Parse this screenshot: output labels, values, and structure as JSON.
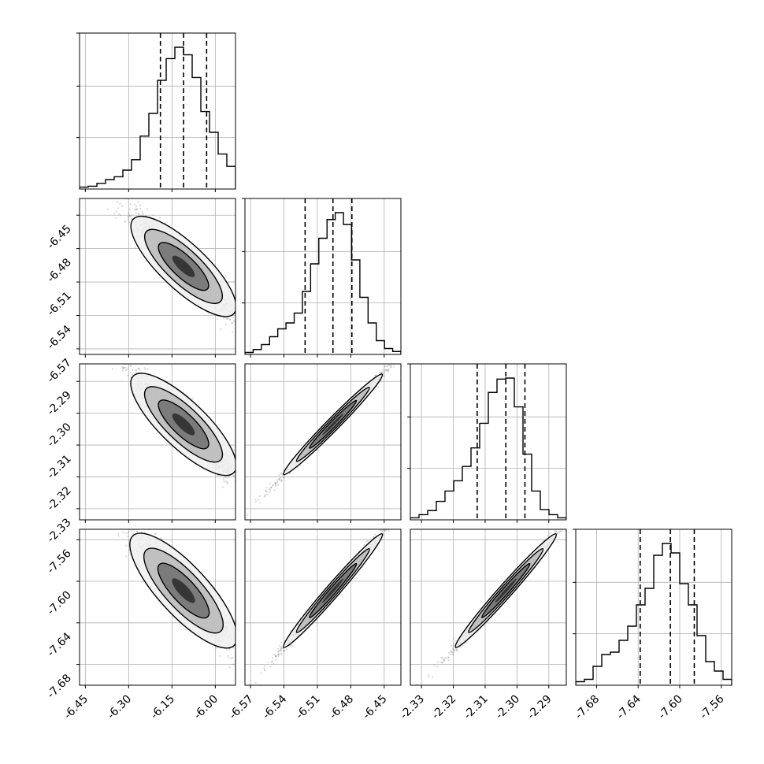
{
  "chart_data": {
    "type": "corner",
    "n_params": 4,
    "parameters": [
      {
        "name": "",
        "range": [
          -6.47,
          -5.93
        ],
        "ticks": [
          "-6.45",
          "-6.30",
          "-6.15",
          "-6.00"
        ],
        "tick_values": [
          -6.45,
          -6.3,
          -6.15,
          -6.0
        ],
        "quantiles": [
          -6.19,
          -6.11,
          -6.03
        ]
      },
      {
        "name": "",
        "range": [
          -6.575,
          -6.435
        ],
        "ticks": [
          "-6.57",
          "-6.54",
          "-6.51",
          "-6.48",
          "-6.45"
        ],
        "tick_values": [
          -6.57,
          -6.54,
          -6.51,
          -6.48,
          -6.45
        ],
        "quantiles": [
          -6.521,
          -6.496,
          -6.479
        ]
      },
      {
        "name": "",
        "range": [
          -2.3335,
          -2.2845
        ],
        "ticks": [
          "-2.33",
          "-2.32",
          "-2.31",
          "-2.30",
          "-2.29"
        ],
        "tick_values": [
          -2.33,
          -2.32,
          -2.31,
          -2.3,
          -2.29
        ],
        "quantiles": [
          -2.3125,
          -2.3035,
          -2.2975
        ]
      },
      {
        "name": "",
        "range": [
          -7.7,
          -7.55
        ],
        "ticks": [
          "-7.68",
          "-7.64",
          "-7.60",
          "-7.56"
        ],
        "tick_values": [
          -7.68,
          -7.64,
          -7.6,
          -7.56
        ],
        "quantiles": [
          -7.638,
          -7.609,
          -7.586
        ]
      }
    ],
    "histograms": [
      [
        2,
        3,
        6,
        10,
        13,
        20,
        31,
        56,
        80,
        115,
        138,
        150,
        142,
        118,
        82,
        60,
        37,
        24
      ],
      [
        2,
        5,
        10,
        18,
        26,
        32,
        42,
        64,
        92,
        118,
        137,
        144,
        132,
        96,
        58,
        32,
        14,
        6,
        3
      ],
      [
        2,
        5,
        9,
        18,
        28,
        38,
        52,
        70,
        94,
        124,
        137,
        138,
        110,
        64,
        28,
        10,
        5,
        2
      ],
      [
        3,
        5,
        16,
        26,
        28,
        38,
        50,
        68,
        82,
        110,
        120,
        112,
        86,
        68,
        42,
        20,
        12,
        5
      ]
    ],
    "contour_levels": [
      "0.5",
      "1.0",
      "1.5",
      "2.0"
    ],
    "grid": true,
    "xlabel": "",
    "ylabel": ""
  },
  "colors": {
    "line": "#000000",
    "points": "#7f7f7f",
    "grid": "#b0b0b0",
    "fill_light": "#f0f0f0",
    "fill_mid": "#b8b8b8",
    "fill_dark": "#6e6e6e"
  }
}
